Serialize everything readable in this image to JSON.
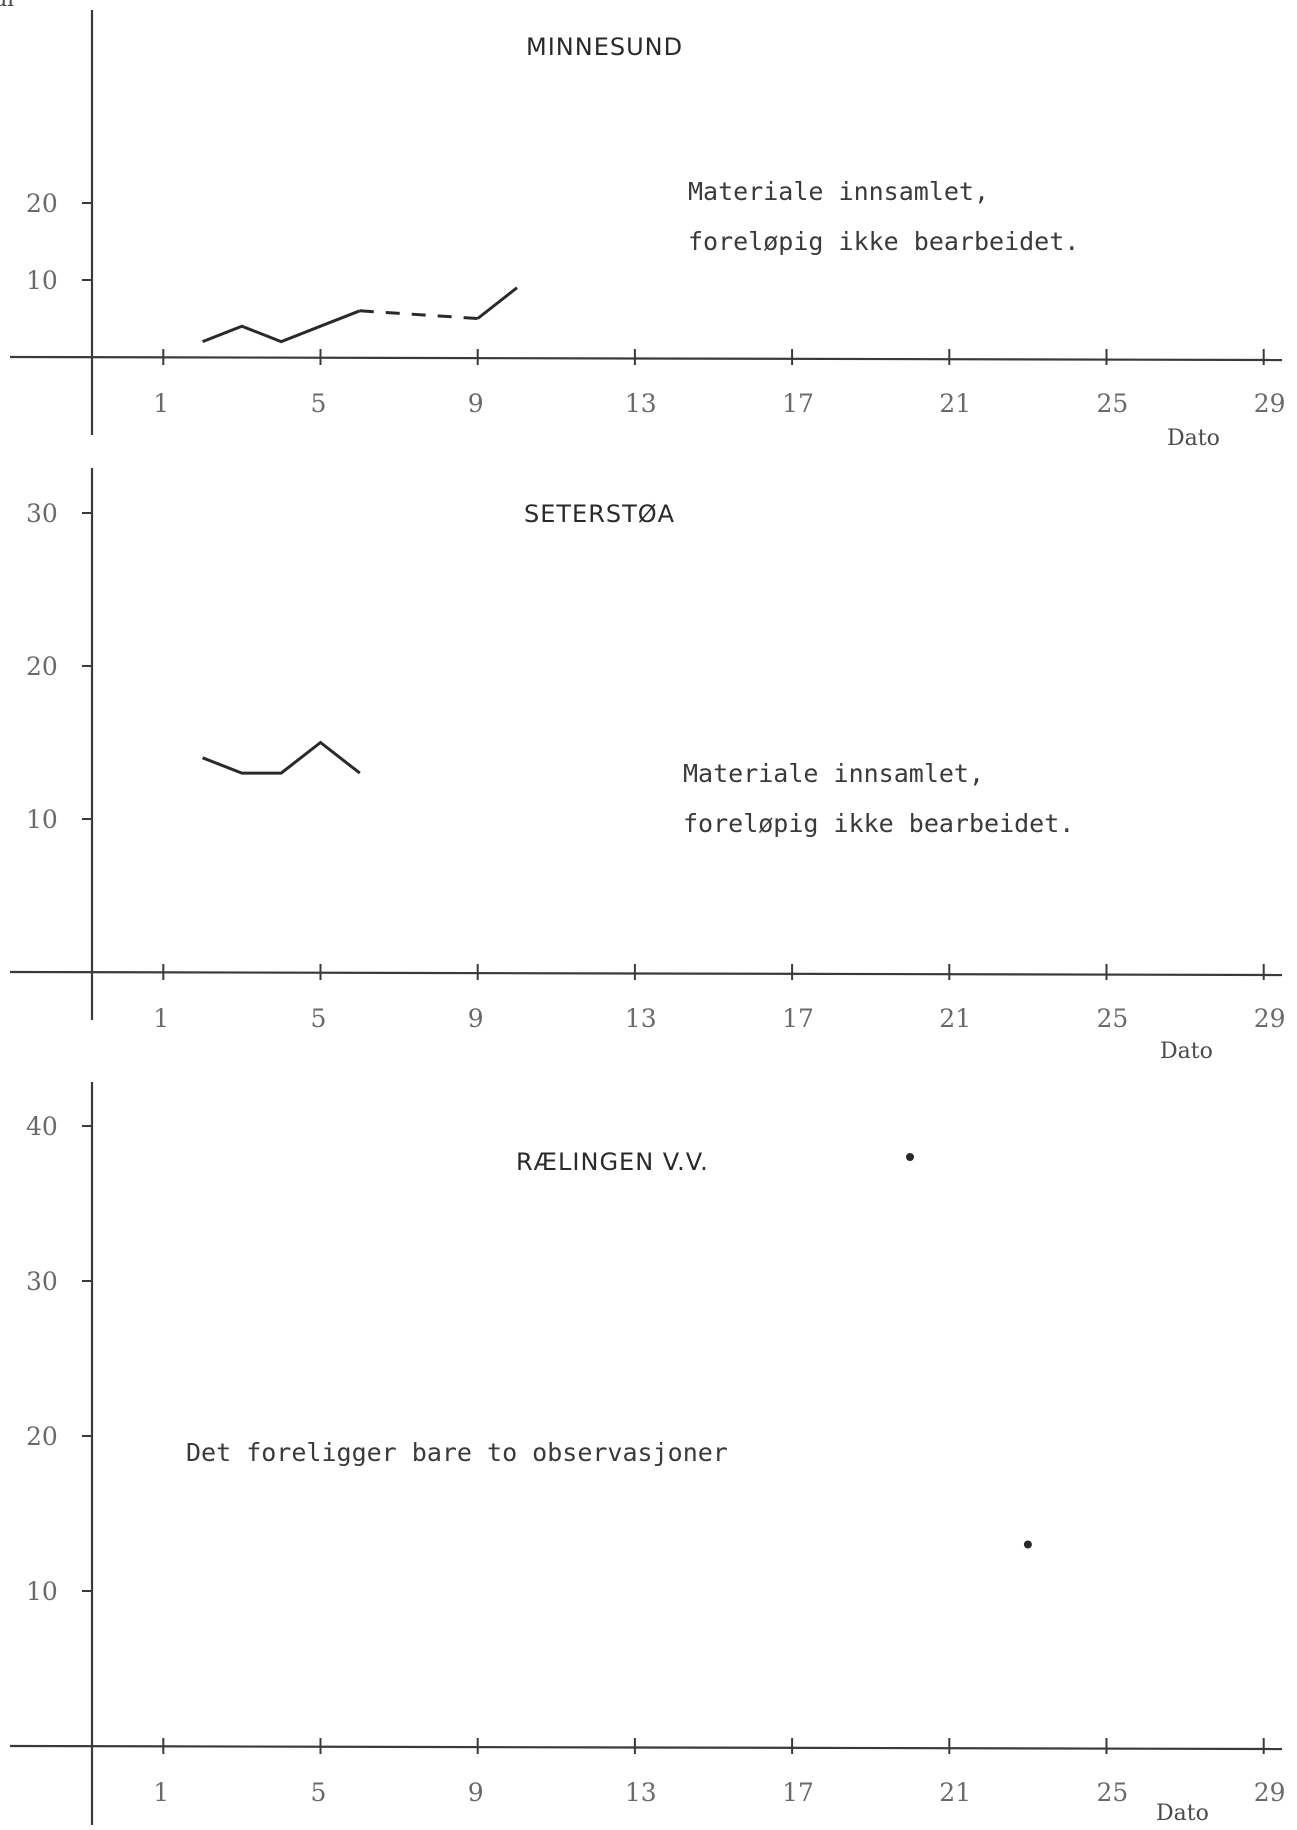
{
  "corner_label": "al",
  "chart_data": [
    {
      "type": "line",
      "title": "MINNESUND",
      "xlabel": "Dato",
      "ylabel": "",
      "xlim": [
        0,
        29
      ],
      "ylim": [
        0,
        20
      ],
      "x_ticks": [
        1,
        5,
        9,
        13,
        17,
        21,
        25,
        29
      ],
      "y_ticks": [
        10,
        20
      ],
      "note": [
        "Materiale innsamlet,",
        "foreløpig ikke bearbeidet."
      ],
      "series": [
        {
          "style": "solid",
          "x": [
            2,
            3,
            4,
            5,
            6
          ],
          "y": [
            2,
            4,
            2,
            4,
            6
          ]
        },
        {
          "style": "dashed",
          "x": [
            6,
            9
          ],
          "y": [
            6,
            5
          ]
        },
        {
          "style": "solid",
          "x": [
            9,
            10
          ],
          "y": [
            5,
            9
          ]
        }
      ]
    },
    {
      "type": "line",
      "title": "SETERSTØA",
      "xlabel": "Dato",
      "ylabel": "",
      "xlim": [
        0,
        29
      ],
      "ylim": [
        0,
        30
      ],
      "x_ticks": [
        1,
        5,
        9,
        13,
        17,
        21,
        25,
        29
      ],
      "y_ticks": [
        10,
        20,
        30
      ],
      "note": [
        "Materiale innsamlet,",
        "foreløpig ikke bearbeidet."
      ],
      "series": [
        {
          "style": "solid",
          "x": [
            2,
            3,
            4,
            5,
            6
          ],
          "y": [
            14,
            13,
            13,
            15,
            13
          ]
        }
      ]
    },
    {
      "type": "scatter",
      "title": "RÆLINGEN V.V.",
      "xlabel": "Dato",
      "ylabel": "",
      "xlim": [
        0,
        29
      ],
      "ylim": [
        0,
        40
      ],
      "x_ticks": [
        1,
        5,
        9,
        13,
        17,
        21,
        25,
        29
      ],
      "y_ticks": [
        10,
        20,
        30,
        40
      ],
      "note": [
        "Det foreligger bare to observasjoner"
      ],
      "series": [
        {
          "style": "points",
          "x": [
            20,
            23
          ],
          "y": [
            38,
            13
          ]
        }
      ]
    }
  ]
}
